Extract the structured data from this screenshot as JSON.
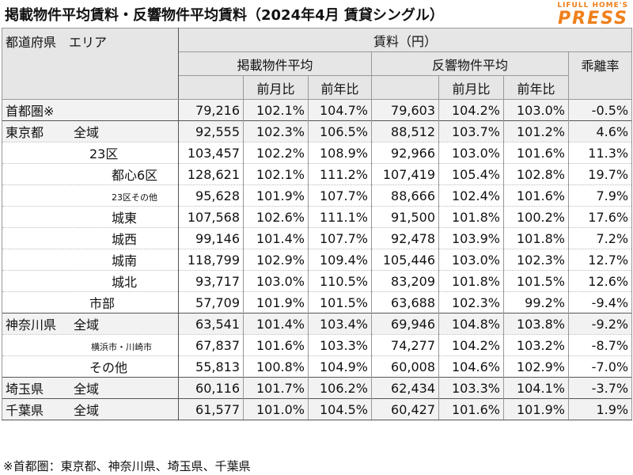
{
  "title": "掲載物件平均賃料・反響物件平均賃料（2024年4月 賃貸シングル）",
  "logo": {
    "line1": "LIFULL HOME'S",
    "line2": "PRESS"
  },
  "header": {
    "region": "都道府県　エリア",
    "rent_yen": "賃料（円）",
    "listing_avg": "掲載物件平均",
    "inquiry_avg": "反響物件平均",
    "divergence": "乖離率",
    "mom": "前月比",
    "yoy": "前年比"
  },
  "rows": [
    {
      "pref": "首都圏※",
      "area": "",
      "l": "79,216",
      "lm": "102.1%",
      "ly": "104.7%",
      "i": "79,603",
      "im": "104.2%",
      "iy": "103.0%",
      "d": "-0.5%"
    },
    {
      "pref": "東京都",
      "area": "全域",
      "l": "92,555",
      "lm": "102.3%",
      "ly": "106.5%",
      "i": "88,512",
      "im": "103.7%",
      "iy": "101.2%",
      "d": "4.6%"
    },
    {
      "pref": "",
      "area": "23区",
      "l": "103,457",
      "lm": "102.2%",
      "ly": "108.9%",
      "i": "92,966",
      "im": "103.0%",
      "iy": "101.6%",
      "d": "11.3%"
    },
    {
      "pref": "",
      "area": "都心6区",
      "l": "128,621",
      "lm": "102.1%",
      "ly": "111.2%",
      "i": "107,419",
      "im": "105.4%",
      "iy": "102.8%",
      "d": "19.7%"
    },
    {
      "pref": "",
      "area": "23区その他",
      "l": "95,628",
      "lm": "101.9%",
      "ly": "107.7%",
      "i": "88,666",
      "im": "102.4%",
      "iy": "101.6%",
      "d": "7.9%"
    },
    {
      "pref": "",
      "area": "城東",
      "l": "107,568",
      "lm": "102.6%",
      "ly": "111.1%",
      "i": "91,500",
      "im": "101.8%",
      "iy": "100.2%",
      "d": "17.6%"
    },
    {
      "pref": "",
      "area": "城西",
      "l": "99,146",
      "lm": "101.4%",
      "ly": "107.7%",
      "i": "92,478",
      "im": "103.9%",
      "iy": "101.8%",
      "d": "7.2%"
    },
    {
      "pref": "",
      "area": "城南",
      "l": "118,799",
      "lm": "102.9%",
      "ly": "109.4%",
      "i": "105,446",
      "im": "103.0%",
      "iy": "102.3%",
      "d": "12.7%"
    },
    {
      "pref": "",
      "area": "城北",
      "l": "93,717",
      "lm": "103.0%",
      "ly": "110.5%",
      "i": "83,209",
      "im": "101.8%",
      "iy": "101.5%",
      "d": "12.6%"
    },
    {
      "pref": "",
      "area": "市部",
      "l": "57,709",
      "lm": "101.9%",
      "ly": "101.5%",
      "i": "63,688",
      "im": "102.3%",
      "iy": "99.2%",
      "d": "-9.4%"
    },
    {
      "pref": "神奈川県",
      "area": "全域",
      "l": "63,541",
      "lm": "101.4%",
      "ly": "103.4%",
      "i": "69,946",
      "im": "104.8%",
      "iy": "103.8%",
      "d": "-9.2%"
    },
    {
      "pref": "",
      "area": "横浜市・川崎市",
      "l": "67,837",
      "lm": "101.6%",
      "ly": "103.3%",
      "i": "74,277",
      "im": "104.2%",
      "iy": "103.2%",
      "d": "-8.7%"
    },
    {
      "pref": "",
      "area": "その他",
      "l": "55,813",
      "lm": "100.8%",
      "ly": "104.9%",
      "i": "60,008",
      "im": "104.6%",
      "iy": "102.9%",
      "d": "-7.0%"
    },
    {
      "pref": "埼玉県",
      "area": "全域",
      "l": "60,116",
      "lm": "101.7%",
      "ly": "106.2%",
      "i": "62,434",
      "im": "103.3%",
      "iy": "104.1%",
      "d": "-3.7%"
    },
    {
      "pref": "千葉県",
      "area": "全域",
      "l": "61,577",
      "lm": "101.0%",
      "ly": "104.5%",
      "i": "60,427",
      "im": "101.6%",
      "iy": "101.9%",
      "d": "1.9%"
    }
  ],
  "footnote": "※首都圏：東京都、神奈川県、埼玉県、千葉県"
}
